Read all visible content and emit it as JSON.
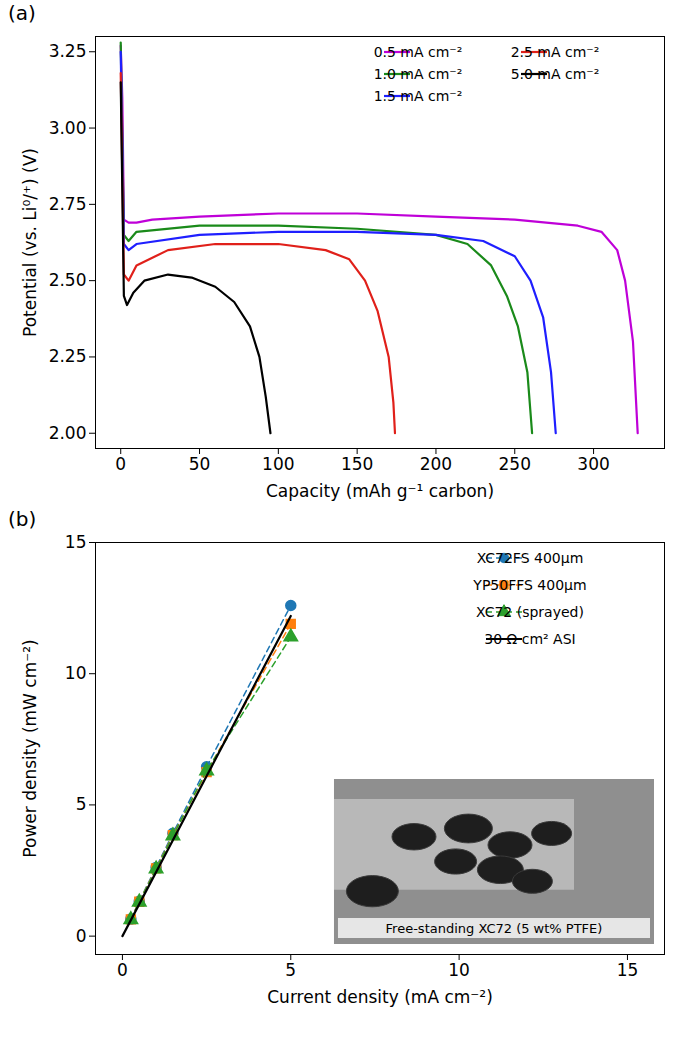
{
  "chart_data": [
    {
      "type": "line",
      "title": "(a)",
      "x_label": "Capacity (mAh g⁻¹ carbon)",
      "y_label": "Potential (vs. Li⁰/⁺) (V)",
      "xlim": [
        -16,
        345
      ],
      "xticks": [
        0,
        50,
        100,
        150,
        200,
        250,
        300
      ],
      "ylim": [
        1.95,
        3.3
      ],
      "yticks": [
        {
          "value": 2,
          "label": "2.00"
        },
        {
          "value": 2.25,
          "label": "2.25"
        },
        {
          "value": 2.5,
          "label": "2.50"
        },
        {
          "value": 2.75,
          "label": "2.75"
        },
        {
          "value": 3,
          "label": "3.00"
        },
        {
          "value": 3.25,
          "label": "3.25"
        }
      ],
      "legend": "upper right",
      "series": [
        {
          "name": "0.5 mA cm⁻²",
          "color": "#bf00d8",
          "line_style": "solid",
          "x": [
            0,
            1,
            2,
            5,
            10,
            20,
            50,
            100,
            150,
            200,
            250,
            290,
            305,
            315,
            320,
            325,
            328
          ],
          "values": [
            3.27,
            3.1,
            2.7,
            2.69,
            2.69,
            2.7,
            2.71,
            2.72,
            2.72,
            2.71,
            2.7,
            2.68,
            2.66,
            2.6,
            2.5,
            2.3,
            2.0
          ]
        },
        {
          "name": "1.0 mA cm⁻²",
          "color": "#1a8a1a",
          "line_style": "solid",
          "x": [
            0,
            2,
            5,
            10,
            50,
            100,
            150,
            200,
            220,
            235,
            245,
            252,
            258,
            261
          ],
          "values": [
            3.28,
            2.65,
            2.63,
            2.66,
            2.68,
            2.68,
            2.67,
            2.65,
            2.62,
            2.55,
            2.45,
            2.35,
            2.2,
            2.0
          ]
        },
        {
          "name": "1.5 mA cm⁻²",
          "color": "#1f1fff",
          "line_style": "solid",
          "x": [
            0,
            2,
            5,
            10,
            50,
            100,
            150,
            200,
            230,
            250,
            260,
            268,
            273,
            276
          ],
          "values": [
            3.25,
            2.62,
            2.6,
            2.62,
            2.65,
            2.66,
            2.66,
            2.65,
            2.63,
            2.58,
            2.5,
            2.38,
            2.2,
            2.0
          ]
        },
        {
          "name": "2.5 mA cm⁻²",
          "color": "#e0201a",
          "line_style": "solid",
          "x": [
            0,
            2,
            5,
            10,
            30,
            60,
            100,
            130,
            145,
            155,
            163,
            170,
            173,
            174
          ],
          "values": [
            3.18,
            2.52,
            2.5,
            2.55,
            2.6,
            2.62,
            2.62,
            2.6,
            2.57,
            2.5,
            2.4,
            2.25,
            2.1,
            2.0
          ]
        },
        {
          "name": "5.0 mA cm⁻²",
          "color": "#000000",
          "line_style": "solid",
          "x": [
            0,
            2,
            4,
            8,
            15,
            30,
            45,
            60,
            72,
            82,
            88,
            92,
            95
          ],
          "values": [
            3.15,
            2.45,
            2.42,
            2.46,
            2.5,
            2.52,
            2.51,
            2.48,
            2.43,
            2.35,
            2.25,
            2.12,
            2.0
          ]
        }
      ]
    },
    {
      "type": "line",
      "title": "(b)",
      "x_label": "Current density (mA cm⁻²)",
      "y_label": "Power density (mW cm⁻²)",
      "xlim": [
        -0.8,
        16.1
      ],
      "xticks": [
        0,
        5,
        10,
        15
      ],
      "ylim": [
        -0.7,
        15
      ],
      "yticks": [
        0,
        5,
        10,
        15
      ],
      "legend": "upper right",
      "annotations": [
        {
          "text": "Free-standing XC72 (5 wt% PTFE)"
        }
      ],
      "series": [
        {
          "name": "XC72FS 400µm",
          "color": "#1f77b4",
          "marker": "circle",
          "line_style": "dashed",
          "x": [
            0.25,
            0.5,
            1,
            1.5,
            2.5,
            5
          ],
          "values": [
            0.65,
            1.33,
            2.62,
            3.92,
            6.45,
            12.6
          ]
        },
        {
          "name": "YP50FFS 400µm",
          "color": "#ff7f0e",
          "marker": "square",
          "line_style": "dashed",
          "x": [
            0.25,
            0.5,
            1,
            1.5,
            2.5,
            5
          ],
          "values": [
            0.64,
            1.31,
            2.58,
            3.85,
            6.25,
            11.9
          ]
        },
        {
          "name": "XC72 (sprayed)",
          "color": "#2ca02c",
          "marker": "triangle",
          "line_style": "dashed",
          "x": [
            0.25,
            0.5,
            1,
            1.5,
            2.5,
            5
          ],
          "values": [
            0.63,
            1.3,
            2.56,
            3.82,
            6.3,
            11.4
          ]
        },
        {
          "name": "30 Ω cm² ASI",
          "color": "#000000",
          "line_style": "solid",
          "x": [
            0,
            5
          ],
          "values": [
            0,
            12.2
          ]
        }
      ]
    }
  ]
}
